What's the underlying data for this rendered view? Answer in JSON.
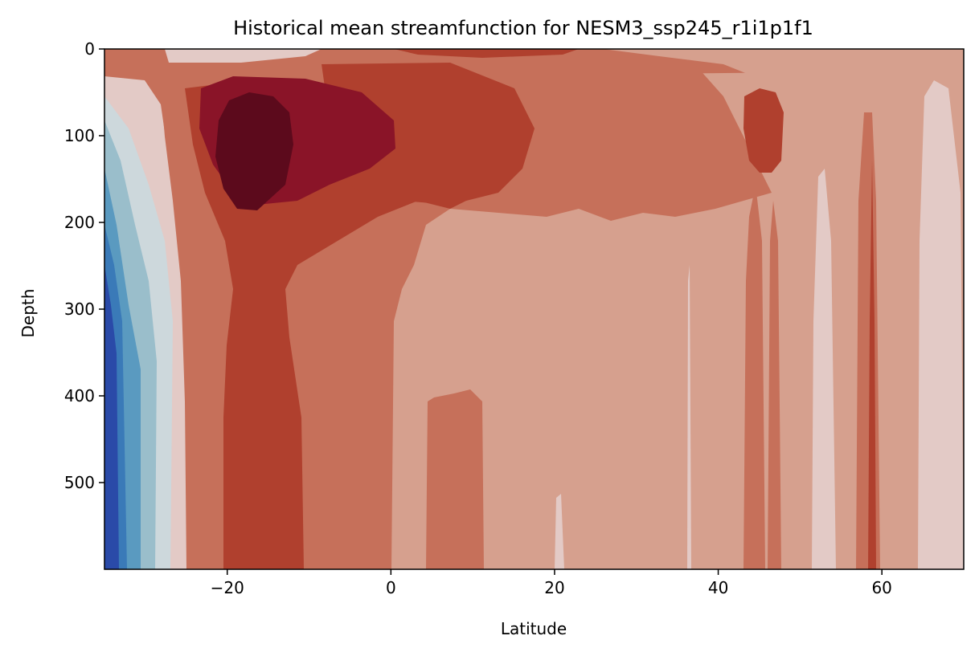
{
  "chart_data": {
    "type": "heatmap",
    "title": "Historical mean streamfunction for NESM3_ssp245_r1i1p1f1",
    "xlabel": "Latitude",
    "ylabel": "Depth",
    "xlim": [
      -35,
      70
    ],
    "ylim": [
      600,
      0
    ],
    "y_inverted": true,
    "x_ticks": [
      -20,
      0,
      20,
      40,
      60
    ],
    "y_ticks": [
      0,
      100,
      200,
      300,
      400,
      500
    ],
    "x_tick_labels": [
      "−20",
      "0",
      "20",
      "40",
      "60"
    ],
    "y_tick_labels": [
      "0",
      "100",
      "200",
      "300",
      "400",
      "500"
    ],
    "grid": false,
    "colormap": "diverging blue-white-red",
    "level_colors": [
      "#2a4aa8",
      "#3a7ab8",
      "#5a9ac0",
      "#9abecb",
      "#cdd8dc",
      "#e3cac6",
      "#d6a08e",
      "#c6705a",
      "#b0402e",
      "#8a1428",
      "#5c0a1c"
    ],
    "structures": [
      {
        "description": "deep core maximum",
        "lat_center": -16,
        "depth_center": 120,
        "level": 10
      },
      {
        "description": "subtropical cell",
        "lat_center": -13,
        "depth_center": 150,
        "level": 9
      },
      {
        "description": "column below cell",
        "lat_range": [
          -20,
          -11
        ],
        "depth_range": [
          250,
          600
        ],
        "level": 8
      },
      {
        "description": "northern plume",
        "lat_range": [
          -5,
          10
        ],
        "depth_range": [
          40,
          200
        ],
        "level": 8
      },
      {
        "description": "mid-latitude band",
        "lat_range": [
          42,
          48
        ],
        "depth_range": [
          50,
          150
        ],
        "level": 8
      },
      {
        "description": "southern boundary negative",
        "lat_range": [
          -35,
          -28
        ],
        "depth_range": [
          30,
          600
        ],
        "level": 0
      }
    ]
  }
}
